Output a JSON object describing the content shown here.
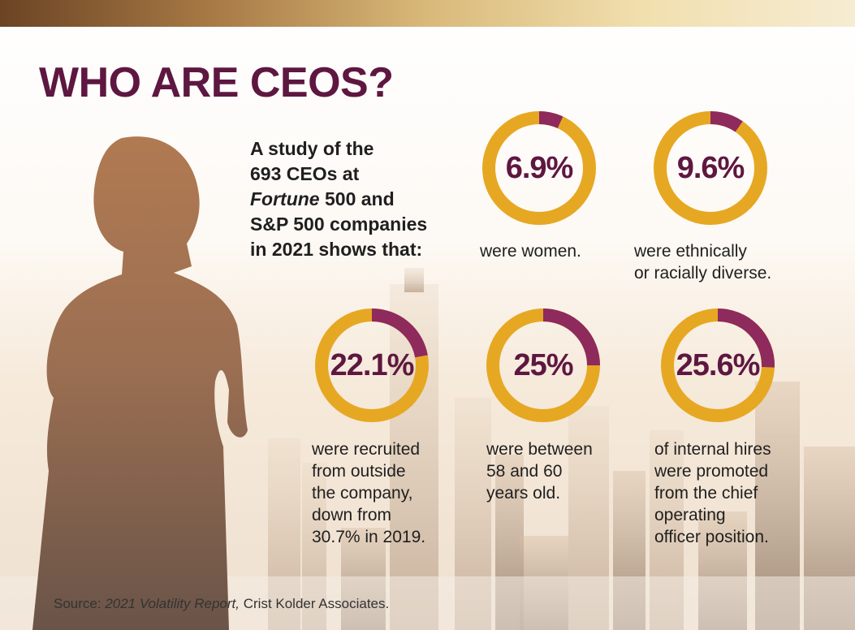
{
  "title": "WHO ARE CEOS?",
  "intro": {
    "line1": "A study of the",
    "line2": "693 CEOs at",
    "line3_italic": "Fortune",
    "line3_rest": " 500 and",
    "line4": "S&P 500 companies",
    "line5": "in 2021 shows that:"
  },
  "colors": {
    "title": "#5e1740",
    "ring_base": "#e6a823",
    "ring_highlight": "#8e2a5c"
  },
  "chart_data": {
    "type": "pie",
    "subtype": "donut",
    "unit": "%",
    "items": [
      {
        "label": "6.9%",
        "value": 6.9,
        "caption_lines": [
          "were women."
        ]
      },
      {
        "label": "9.6%",
        "value": 9.6,
        "caption_lines": [
          "were ethnically",
          "or racially diverse."
        ]
      },
      {
        "label": "22.1%",
        "value": 22.1,
        "caption_lines": [
          "were recruited",
          "from outside",
          "the company,",
          "down from",
          "30.7% in 2019."
        ]
      },
      {
        "label": "25%",
        "value": 25,
        "caption_lines": [
          "were between",
          "58 and 60",
          "years old."
        ]
      },
      {
        "label": "25.6%",
        "value": 25.6,
        "caption_lines": [
          "of internal hires",
          "were promoted",
          "from the chief",
          "operating",
          "officer position."
        ]
      }
    ]
  },
  "source": {
    "prefix": "Source: ",
    "italic": "2021 Volatility Report,",
    "suffix": " Crist Kolder Associates."
  }
}
